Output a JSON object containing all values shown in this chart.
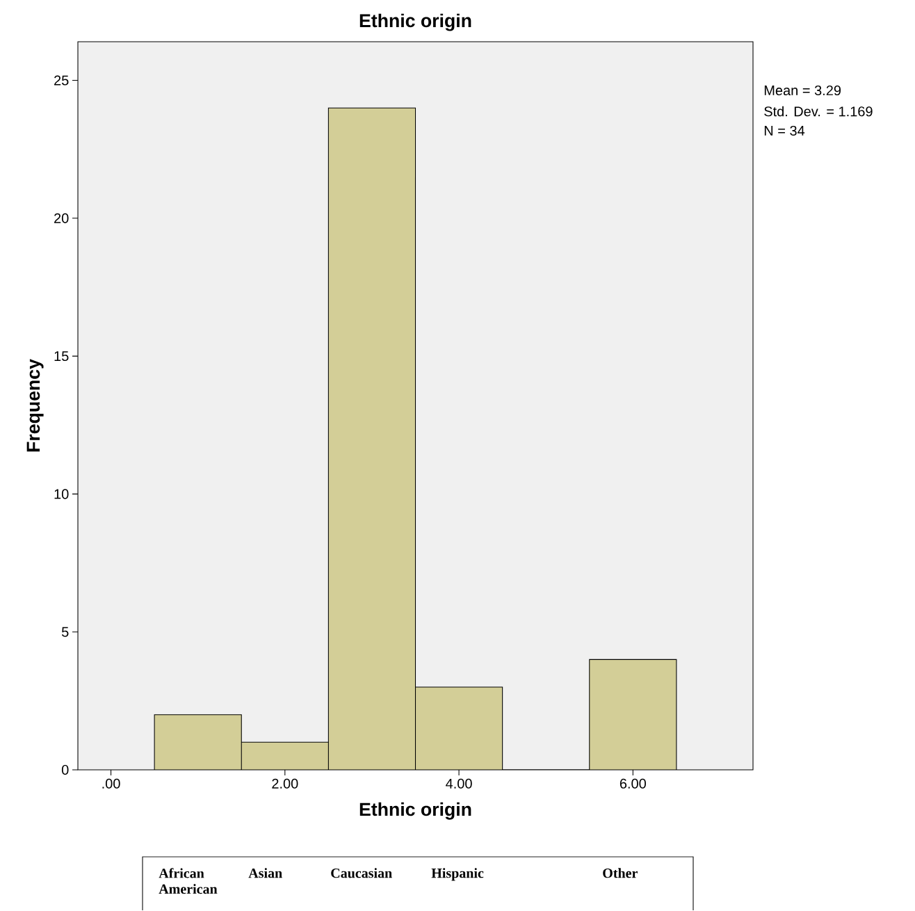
{
  "chart_data": {
    "type": "histogram",
    "title": "Ethnic origin",
    "xlabel": "Ethnic origin",
    "ylabel": "Frequency",
    "bins": [
      0.5,
      1.5,
      2.5,
      3.5,
      4.5,
      5.5,
      6.5
    ],
    "values": [
      2,
      1,
      24,
      3,
      0,
      4
    ],
    "color": "#d3ce97",
    "xlim": [
      -0.38,
      7.38
    ],
    "ylim": [
      0,
      26.4
    ],
    "xticks": [
      {
        "value": 0,
        "label": ".00"
      },
      {
        "value": 2,
        "label": "2.00"
      },
      {
        "value": 4,
        "label": "4.00"
      },
      {
        "value": 6,
        "label": "6.00"
      }
    ],
    "yticks": [
      0,
      5,
      10,
      15,
      20,
      25
    ],
    "annotations": [
      "Mean = 3.29",
      "Std. Dev. = 1.169",
      "N = 34",
      "African American",
      "Asian",
      "Caucasian",
      "Hispanic",
      "Other"
    ]
  }
}
